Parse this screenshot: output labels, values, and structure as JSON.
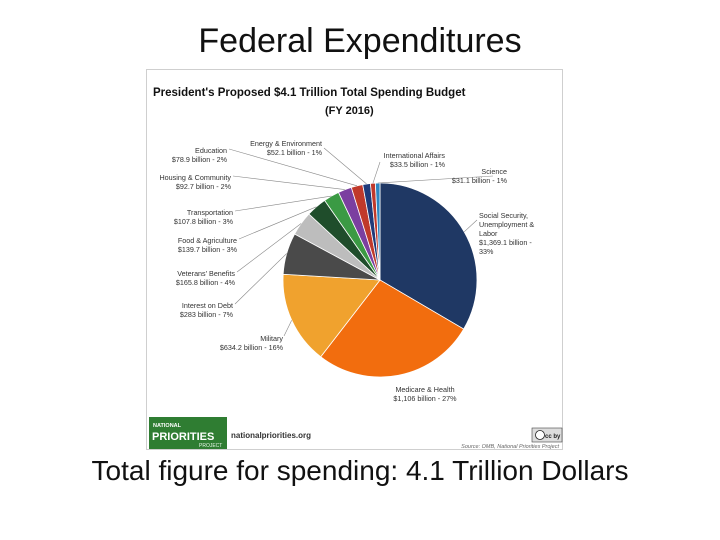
{
  "slide": {
    "title": "Federal Expenditures",
    "caption": "Total figure for spending: 4.1 Trillion Dollars"
  },
  "branding": {
    "logo_top": "NATIONAL",
    "logo_main": "PRIORITIES",
    "logo_bottom": "PROJECT",
    "website": "nationalpriorities.org",
    "source": "Source: OMB, National Priorities Project",
    "license_mark": "cc by"
  },
  "colors": {
    "social_security": "#1f3864",
    "medicare": "#f26d0e",
    "military": "#f0a22e",
    "interest": "#4a4a4a",
    "veterans": "#bdbdbd",
    "food": "#1f4d2b",
    "transportation": "#3b9a44",
    "housing": "#7b3fa0",
    "energy": "#1f3a7a",
    "education": "#c0392b",
    "international": "#c0392b",
    "science": "#2e86c1",
    "logo_green": "#2f7d32"
  },
  "chart_data": {
    "type": "pie",
    "title": "President's Proposed $4.1 Trillion Total Spending Budget",
    "subtitle": "(FY 2016)",
    "slices": [
      {
        "label": "Social Security, Unemployment & Labor",
        "value_text": "$1,369.1 billion",
        "pct_text": "33%",
        "value": 1369.1,
        "color_key": "social_security"
      },
      {
        "label": "Medicare & Health",
        "value_text": "$1,106 billion",
        "pct_text": "27%",
        "value": 1106,
        "color_key": "medicare"
      },
      {
        "label": "Military",
        "value_text": "$634.2 billion",
        "pct_text": "16%",
        "value": 634.2,
        "color_key": "military"
      },
      {
        "label": "Interest on Debt",
        "value_text": "$283 billion",
        "pct_text": "7%",
        "value": 283,
        "color_key": "interest"
      },
      {
        "label": "Veterans' Benefits",
        "value_text": "$165.8 billion",
        "pct_text": "4%",
        "value": 165.8,
        "color_key": "veterans"
      },
      {
        "label": "Food & Agriculture",
        "value_text": "$139.7 billion",
        "pct_text": "3%",
        "value": 139.7,
        "color_key": "food"
      },
      {
        "label": "Transportation",
        "value_text": "$107.8 billion",
        "pct_text": "3%",
        "value": 107.8,
        "color_key": "transportation"
      },
      {
        "label": "Housing & Community",
        "value_text": "$92.7 billion",
        "pct_text": "2%",
        "value": 92.7,
        "color_key": "housing"
      },
      {
        "label": "Education",
        "value_text": "$78.9 billion",
        "pct_text": "2%",
        "value": 78.9,
        "color_key": "education"
      },
      {
        "label": "Energy & Environment",
        "value_text": "$52.1 billion",
        "pct_text": "1%",
        "value": 52.1,
        "color_key": "energy"
      },
      {
        "label": "International Affairs",
        "value_text": "$33.5 billion",
        "pct_text": "1%",
        "value": 33.5,
        "color_key": "international"
      },
      {
        "label": "Science",
        "value_text": "$31.1 billion",
        "pct_text": "1%",
        "value": 31.1,
        "color_key": "science"
      }
    ]
  }
}
